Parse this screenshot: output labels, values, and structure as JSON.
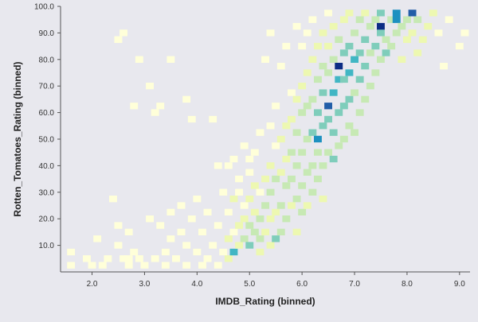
{
  "chart_data": {
    "type": "heatmap",
    "xlabel": "IMDB_Rating (binned)",
    "ylabel": "Rotten_Tomatoes_Rating (binned)",
    "xlim": [
      1.4,
      9.2
    ],
    "ylim": [
      0,
      100
    ],
    "x_ticks": [
      "2.0",
      "3.0",
      "4.0",
      "5.0",
      "6.0",
      "7.0",
      "8.0",
      "9.0"
    ],
    "y_ticks": [
      "10.0",
      "20.0",
      "30.0",
      "40.0",
      "50.0",
      "60.0",
      "70.0",
      "80.0",
      "90.0",
      "100.0"
    ],
    "bin_width_x": 0.15,
    "bin_width_y": 2.5,
    "color_scale": [
      "#ffffd9",
      "#edf8b1",
      "#c7e9b4",
      "#7fcdbb",
      "#41b6c4",
      "#1d91c0",
      "#225ea8",
      "#0c2c84"
    ],
    "cell_columns": [
      "x",
      "y",
      "count"
    ],
    "cells": [
      [
        1.6,
        2.5,
        1
      ],
      [
        1.6,
        7.5,
        1
      ],
      [
        1.9,
        5,
        1
      ],
      [
        2.0,
        2.5,
        1
      ],
      [
        2.1,
        12.5,
        1
      ],
      [
        2.2,
        2.5,
        1
      ],
      [
        2.3,
        5,
        1
      ],
      [
        2.4,
        27.5,
        1
      ],
      [
        2.5,
        10,
        1
      ],
      [
        2.5,
        17.5,
        1
      ],
      [
        2.5,
        87.5,
        1
      ],
      [
        2.6,
        5,
        1
      ],
      [
        2.6,
        90,
        1
      ],
      [
        2.7,
        2.5,
        1
      ],
      [
        2.7,
        5,
        1
      ],
      [
        2.7,
        15,
        1
      ],
      [
        2.8,
        7.5,
        1
      ],
      [
        2.8,
        62.5,
        1
      ],
      [
        2.9,
        5,
        1
      ],
      [
        2.9,
        80,
        1
      ],
      [
        3.0,
        2.5,
        1
      ],
      [
        3.1,
        20,
        1
      ],
      [
        3.1,
        70,
        1
      ],
      [
        3.2,
        5,
        1
      ],
      [
        3.2,
        60,
        1
      ],
      [
        3.3,
        17.5,
        1
      ],
      [
        3.3,
        62.5,
        1
      ],
      [
        3.4,
        2.5,
        1
      ],
      [
        3.4,
        7.5,
        1
      ],
      [
        3.5,
        22.5,
        1
      ],
      [
        3.5,
        12.5,
        1
      ],
      [
        3.5,
        80,
        1
      ],
      [
        3.6,
        5,
        1
      ],
      [
        3.7,
        15,
        1
      ],
      [
        3.7,
        25,
        1
      ],
      [
        3.8,
        2.5,
        1
      ],
      [
        3.8,
        10,
        1
      ],
      [
        3.8,
        65,
        1
      ],
      [
        3.9,
        20,
        1
      ],
      [
        3.9,
        57.5,
        1
      ],
      [
        4.0,
        7.5,
        1
      ],
      [
        4.0,
        27.5,
        1
      ],
      [
        4.1,
        2.5,
        1
      ],
      [
        4.1,
        15,
        1
      ],
      [
        4.2,
        5,
        1
      ],
      [
        4.2,
        22.5,
        1
      ],
      [
        4.3,
        10,
        1
      ],
      [
        4.3,
        57.5,
        1
      ],
      [
        4.4,
        2.5,
        1
      ],
      [
        4.4,
        17.5,
        1
      ],
      [
        4.4,
        40,
        1
      ],
      [
        4.5,
        7.5,
        1
      ],
      [
        4.5,
        30,
        1
      ],
      [
        4.6,
        5,
        2
      ],
      [
        4.6,
        12.5,
        2
      ],
      [
        4.6,
        22.5,
        1
      ],
      [
        4.6,
        40,
        1
      ],
      [
        4.7,
        7.5,
        5
      ],
      [
        4.7,
        27.5,
        2
      ],
      [
        4.7,
        15,
        1
      ],
      [
        4.7,
        42.5,
        1
      ],
      [
        4.8,
        10,
        2
      ],
      [
        4.8,
        17.5,
        2
      ],
      [
        4.8,
        30,
        1
      ],
      [
        4.8,
        35,
        1
      ],
      [
        4.9,
        12.5,
        3
      ],
      [
        4.9,
        20,
        2
      ],
      [
        4.9,
        25,
        1
      ],
      [
        4.9,
        47.5,
        1
      ],
      [
        5.0,
        10,
        4
      ],
      [
        5.0,
        17.5,
        3
      ],
      [
        5.0,
        27.5,
        2
      ],
      [
        5.0,
        37.5,
        1
      ],
      [
        5.0,
        42.5,
        1
      ],
      [
        5.1,
        15,
        3
      ],
      [
        5.1,
        22.5,
        2
      ],
      [
        5.1,
        32.5,
        2
      ],
      [
        5.1,
        45,
        1
      ],
      [
        5.2,
        7.5,
        2
      ],
      [
        5.2,
        12.5,
        3
      ],
      [
        5.2,
        20,
        3
      ],
      [
        5.2,
        30,
        1
      ],
      [
        5.2,
        52.5,
        1
      ],
      [
        5.3,
        15,
        2
      ],
      [
        5.3,
        25,
        3
      ],
      [
        5.3,
        35,
        2
      ],
      [
        5.3,
        80,
        1
      ],
      [
        5.4,
        10,
        2
      ],
      [
        5.4,
        20,
        2
      ],
      [
        5.4,
        30,
        3
      ],
      [
        5.4,
        40,
        2
      ],
      [
        5.4,
        55,
        1
      ],
      [
        5.4,
        90,
        1
      ],
      [
        5.5,
        12.5,
        4
      ],
      [
        5.5,
        22.5,
        2
      ],
      [
        5.5,
        35,
        3
      ],
      [
        5.5,
        47.5,
        1
      ],
      [
        5.5,
        62.5,
        1
      ],
      [
        5.6,
        15,
        3
      ],
      [
        5.6,
        25,
        3
      ],
      [
        5.6,
        37.5,
        2
      ],
      [
        5.6,
        50,
        2
      ],
      [
        5.6,
        77.5,
        1
      ],
      [
        5.7,
        20,
        3
      ],
      [
        5.7,
        32.5,
        3
      ],
      [
        5.7,
        42.5,
        2
      ],
      [
        5.7,
        55,
        2
      ],
      [
        5.7,
        85,
        1
      ],
      [
        5.8,
        25,
        2
      ],
      [
        5.8,
        35,
        3
      ],
      [
        5.8,
        45,
        3
      ],
      [
        5.8,
        57.5,
        2
      ],
      [
        5.8,
        67.5,
        1
      ],
      [
        5.9,
        15,
        2
      ],
      [
        5.9,
        27.5,
        3
      ],
      [
        5.9,
        40,
        3
      ],
      [
        5.9,
        52.5,
        3
      ],
      [
        5.9,
        65,
        2
      ],
      [
        5.9,
        92.5,
        1
      ],
      [
        6.0,
        22.5,
        3
      ],
      [
        6.0,
        32.5,
        3
      ],
      [
        6.0,
        45,
        3
      ],
      [
        6.0,
        60,
        3
      ],
      [
        6.0,
        70,
        2
      ],
      [
        6.0,
        85,
        1
      ],
      [
        6.1,
        25,
        2
      ],
      [
        6.1,
        37.5,
        3
      ],
      [
        6.1,
        50,
        3
      ],
      [
        6.1,
        62.5,
        3
      ],
      [
        6.1,
        75,
        2
      ],
      [
        6.1,
        90,
        1
      ],
      [
        6.2,
        30,
        3
      ],
      [
        6.2,
        40,
        3
      ],
      [
        6.2,
        52.5,
        4
      ],
      [
        6.2,
        65,
        3
      ],
      [
        6.2,
        80,
        2
      ],
      [
        6.2,
        95,
        1
      ],
      [
        6.3,
        35,
        3
      ],
      [
        6.3,
        45,
        3
      ],
      [
        6.3,
        50,
        6
      ],
      [
        6.3,
        60,
        4
      ],
      [
        6.3,
        72.5,
        3
      ],
      [
        6.3,
        85,
        2
      ],
      [
        6.4,
        27.5,
        2
      ],
      [
        6.4,
        40,
        3
      ],
      [
        6.4,
        55,
        4
      ],
      [
        6.4,
        67.5,
        4
      ],
      [
        6.4,
        77.5,
        3
      ],
      [
        6.4,
        90,
        2
      ],
      [
        6.5,
        45,
        3
      ],
      [
        6.5,
        57.5,
        4
      ],
      [
        6.5,
        62.5,
        7
      ],
      [
        6.5,
        75,
        3
      ],
      [
        6.5,
        85,
        2
      ],
      [
        6.5,
        97.5,
        1
      ],
      [
        6.6,
        42.5,
        4
      ],
      [
        6.6,
        52.5,
        4
      ],
      [
        6.6,
        67.5,
        5
      ],
      [
        6.6,
        80,
        3
      ],
      [
        6.6,
        92.5,
        2
      ],
      [
        6.7,
        47.5,
        3
      ],
      [
        6.7,
        60,
        4
      ],
      [
        6.7,
        72.5,
        5
      ],
      [
        6.7,
        77.5,
        8
      ],
      [
        6.7,
        87.5,
        3
      ],
      [
        6.8,
        50,
        3
      ],
      [
        6.8,
        62.5,
        4
      ],
      [
        6.8,
        72.5,
        4
      ],
      [
        6.8,
        82.5,
        4
      ],
      [
        6.8,
        95,
        2
      ],
      [
        6.9,
        55,
        3
      ],
      [
        6.9,
        65,
        4
      ],
      [
        6.9,
        75,
        5
      ],
      [
        6.9,
        85,
        4
      ],
      [
        6.9,
        97.5,
        2
      ],
      [
        7.0,
        52.5,
        3
      ],
      [
        7.0,
        67.5,
        3
      ],
      [
        7.0,
        80,
        5
      ],
      [
        7.0,
        90,
        3
      ],
      [
        7.1,
        60,
        3
      ],
      [
        7.1,
        72.5,
        4
      ],
      [
        7.1,
        82.5,
        4
      ],
      [
        7.1,
        95,
        3
      ],
      [
        7.2,
        65,
        3
      ],
      [
        7.2,
        77.5,
        4
      ],
      [
        7.2,
        87.5,
        4
      ],
      [
        7.2,
        97.5,
        2
      ],
      [
        7.3,
        70,
        3
      ],
      [
        7.3,
        82.5,
        3
      ],
      [
        7.3,
        92.5,
        3
      ],
      [
        7.4,
        75,
        3
      ],
      [
        7.4,
        85,
        4
      ],
      [
        7.4,
        95,
        3
      ],
      [
        7.5,
        80,
        3
      ],
      [
        7.5,
        90,
        4
      ],
      [
        7.5,
        92.5,
        8
      ],
      [
        7.5,
        97.5,
        4
      ],
      [
        7.6,
        82.5,
        4
      ],
      [
        7.6,
        87.5,
        3
      ],
      [
        7.7,
        85,
        3
      ],
      [
        7.7,
        95,
        3
      ],
      [
        7.8,
        95,
        6
      ],
      [
        7.8,
        97.5,
        6
      ],
      [
        7.8,
        90,
        3
      ],
      [
        7.9,
        80,
        2
      ],
      [
        7.9,
        92.5,
        3
      ],
      [
        8.0,
        87.5,
        2
      ],
      [
        8.0,
        95,
        3
      ],
      [
        8.1,
        97.5,
        7
      ],
      [
        8.1,
        90,
        2
      ],
      [
        8.2,
        82.5,
        2
      ],
      [
        8.2,
        95,
        3
      ],
      [
        8.3,
        87.5,
        2
      ],
      [
        8.4,
        92.5,
        2
      ],
      [
        8.5,
        97.5,
        2
      ],
      [
        8.6,
        90,
        1
      ],
      [
        8.7,
        77.5,
        1
      ],
      [
        8.8,
        95,
        1
      ],
      [
        9.0,
        85,
        1
      ],
      [
        9.1,
        90,
        1
      ]
    ]
  }
}
